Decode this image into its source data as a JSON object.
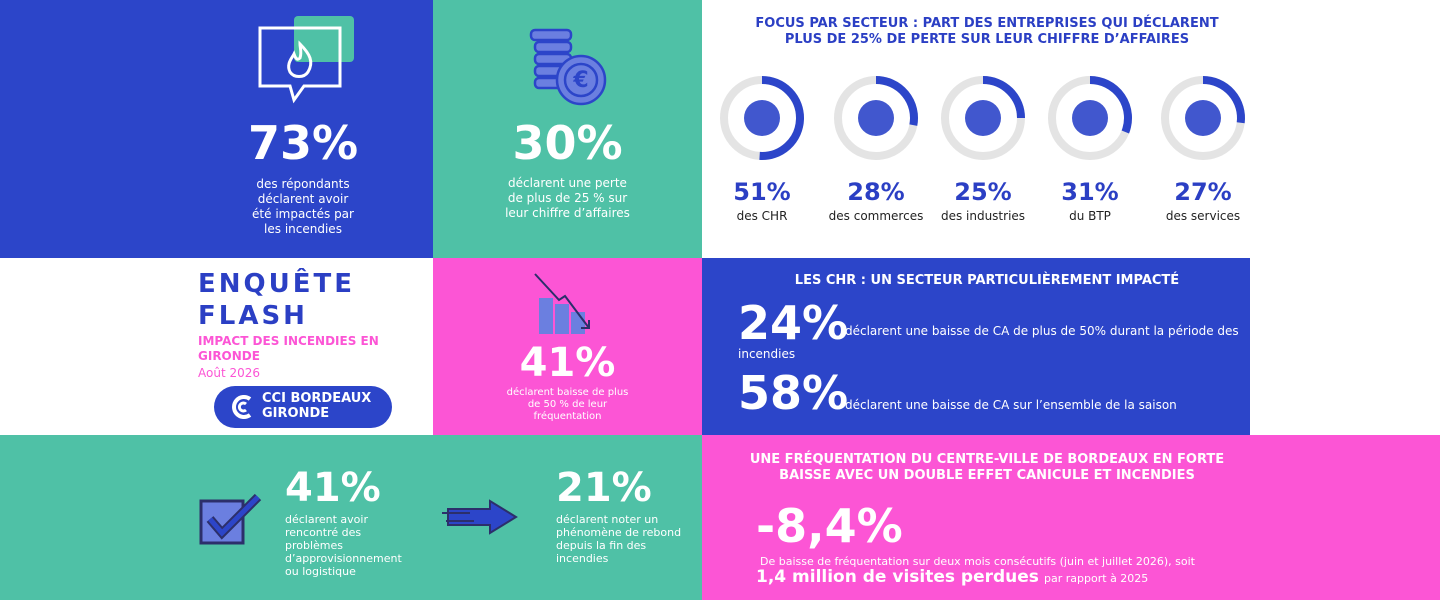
{
  "impact": {
    "value": "73%",
    "lines": [
      "des répondants",
      "déclarent avoir",
      "été impactés par",
      "les incendies"
    ]
  },
  "loss": {
    "value": "30%",
    "lines": [
      "déclarent une perte",
      "de plus de 25 % sur",
      "leur chiffre d’affaires"
    ]
  },
  "sectors": {
    "title": [
      "FOCUS PAR SECTEUR : PART DES ENTREPRISES QUI DÉCLARENT",
      "PLUS DE 25% DE PERTE SUR LEUR CHIFFRE D’AFFAIRES"
    ],
    "items": [
      {
        "value": 51,
        "label": "51%",
        "name": "des CHR"
      },
      {
        "value": 28,
        "label": "28%",
        "name": "des commerces"
      },
      {
        "value": 25,
        "label": "25%",
        "name": "des industries"
      },
      {
        "value": 31,
        "label": "31%",
        "name": "du BTP"
      },
      {
        "value": 27,
        "label": "27%",
        "name": "des services"
      }
    ]
  },
  "survey": {
    "title": [
      "ENQUÊTE",
      "FLASH"
    ],
    "subtitle": [
      "IMPACT DES INCENDIES EN",
      "GIRONDE"
    ],
    "date": "Août 2026",
    "logo": [
      "CCI BORDEAUX",
      "GIRONDE"
    ]
  },
  "attendance": {
    "value": "41%",
    "lines": [
      "déclarent baisse de plus",
      "de 50 % de leur",
      "fréquentation"
    ]
  },
  "chr": {
    "title": "LES CHR : UN SECTEUR PARTICULIÈREMENT IMPACTÉ",
    "stats": [
      {
        "value": "24%",
        "lines": [
          "déclarent une baisse de CA de plus de 50% durant la période des",
          "incendies"
        ]
      },
      {
        "value": "58%",
        "lines": [
          "déclarent une baisse de CA sur l’ensemble de la saison"
        ]
      }
    ]
  },
  "supply": {
    "value": "41%",
    "lines": [
      "déclarent avoir",
      "rencontré des",
      "problèmes",
      "d’approvisionnement",
      "ou logistique"
    ]
  },
  "rebound": {
    "value": "21%",
    "lines": [
      "déclarent noter un",
      "phénomène de rebond",
      "depuis la fin des",
      "incendies"
    ]
  },
  "city": {
    "title": [
      "UNE FRÉQUENTATION DU CENTRE-VILLE DE BORDEAUX EN FORTE",
      "BAISSE AVEC UN DOUBLE EFFET CANICULE ET INCENDIES"
    ],
    "value": "-8,4%",
    "text": "De baisse de fréquentation sur deux mois consécutifs (juin et juillet 2026), soit",
    "highlight": "1,4 million de visites perdues",
    "tail": "par rapport à 2025"
  }
}
